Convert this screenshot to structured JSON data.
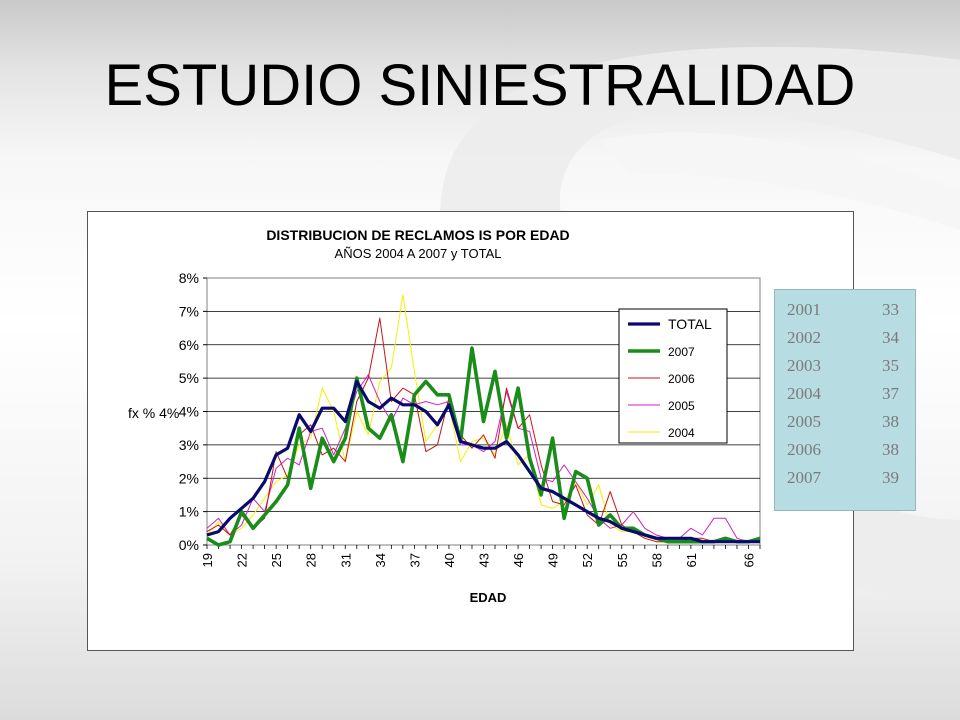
{
  "slide": {
    "title": "ESTUDIO SINIESTRALIDAD"
  },
  "colors": {
    "TOTAL": "#0a0a6e",
    "2007": "#1a8c1a",
    "2006": "#c81414",
    "2005": "#cc22cc",
    "2004": "#f2f200",
    "table_bg": "#b7dde3",
    "table_text": "#7a7a7a"
  },
  "chart_data": {
    "type": "line",
    "title": "DISTRIBUCION DE RECLAMOS IS POR EDAD",
    "subtitle": "AÑOS 2004 A 2007 y TOTAL",
    "xlabel": "EDAD",
    "ylabel": "fx % 4%",
    "x_ticks": [
      "19",
      "22",
      "25",
      "28",
      "31",
      "34",
      "37",
      "40",
      "43",
      "46",
      "49",
      "52",
      "55",
      "58",
      "61",
      "66"
    ],
    "y_ticks": [
      "0%",
      "1%",
      "2%",
      "3%",
      "4%",
      "5%",
      "6%",
      "7%",
      "8%"
    ],
    "ylim": [
      0,
      8
    ],
    "grid": true,
    "legend_position": "right",
    "x": [
      19,
      20,
      21,
      22,
      23,
      24,
      25,
      26,
      27,
      28,
      29,
      30,
      31,
      32,
      33,
      34,
      35,
      36,
      37,
      38,
      39,
      40,
      41,
      42,
      43,
      44,
      45,
      46,
      47,
      48,
      49,
      50,
      51,
      52,
      53,
      54,
      55,
      56,
      57,
      58,
      59,
      60,
      61,
      62,
      63,
      64,
      65,
      66,
      67
    ],
    "series": [
      {
        "name": "TOTAL",
        "values": [
          0.3,
          0.4,
          0.8,
          1.1,
          1.4,
          1.9,
          2.7,
          2.9,
          3.9,
          3.4,
          4.1,
          4.1,
          3.7,
          4.9,
          4.3,
          4.1,
          4.4,
          4.2,
          4.2,
          4.0,
          3.6,
          4.2,
          3.1,
          3.0,
          2.9,
          2.9,
          3.1,
          2.7,
          2.2,
          1.7,
          1.6,
          1.4,
          1.2,
          1.0,
          0.8,
          0.7,
          0.5,
          0.4,
          0.3,
          0.2,
          0.2,
          0.2,
          0.2,
          0.1,
          0.1,
          0.1,
          0.1,
          0.1,
          0.1
        ]
      },
      {
        "name": "2007",
        "values": [
          0.2,
          0.0,
          0.1,
          1.0,
          0.5,
          0.9,
          1.3,
          1.8,
          3.5,
          1.7,
          3.2,
          2.5,
          3.2,
          5.0,
          3.5,
          3.2,
          3.9,
          2.5,
          4.5,
          4.9,
          4.5,
          4.5,
          3.1,
          5.9,
          3.7,
          5.2,
          3.2,
          4.7,
          2.6,
          1.5,
          3.2,
          0.8,
          2.2,
          2.0,
          0.6,
          0.9,
          0.5,
          0.5,
          0.3,
          0.2,
          0.1,
          0.1,
          0.1,
          0.1,
          0.1,
          0.2,
          0.1,
          0.1,
          0.2
        ]
      },
      {
        "name": "2006",
        "values": [
          0.4,
          0.6,
          0.3,
          0.9,
          0.5,
          0.8,
          2.8,
          2.0,
          3.3,
          3.6,
          2.7,
          2.9,
          2.5,
          4.3,
          5.0,
          6.8,
          4.3,
          4.7,
          4.5,
          2.8,
          3.0,
          4.4,
          3.3,
          2.9,
          3.3,
          2.6,
          4.7,
          3.5,
          3.9,
          2.4,
          1.3,
          1.2,
          1.8,
          0.9,
          0.6,
          1.6,
          0.6,
          0.4,
          0.2,
          0.1,
          0.1,
          0.1,
          0.2,
          0.2,
          0.1,
          0.1,
          0.1,
          0.1,
          0.1
        ]
      },
      {
        "name": "2005",
        "values": [
          0.5,
          0.8,
          0.3,
          0.6,
          1.4,
          1.0,
          2.3,
          2.6,
          2.4,
          3.4,
          3.5,
          2.7,
          3.5,
          4.6,
          5.1,
          4.3,
          3.7,
          4.4,
          4.2,
          4.3,
          4.2,
          4.3,
          3.0,
          3.0,
          2.8,
          3.1,
          4.6,
          3.5,
          3.4,
          2.0,
          1.9,
          2.4,
          1.9,
          1.4,
          0.8,
          0.5,
          0.6,
          1.0,
          0.5,
          0.3,
          0.2,
          0.2,
          0.5,
          0.3,
          0.8,
          0.8,
          0.2,
          0.1,
          0.1
        ]
      },
      {
        "name": "2004",
        "values": [
          0.3,
          0.7,
          0.3,
          0.5,
          0.9,
          1.4,
          1.9,
          2.1,
          3.0,
          3.2,
          4.7,
          4.0,
          2.5,
          4.0,
          3.3,
          4.9,
          5.3,
          7.5,
          5.2,
          3.1,
          3.6,
          4.2,
          2.5,
          3.1,
          3.2,
          2.7,
          3.6,
          2.4,
          2.7,
          1.2,
          1.1,
          1.3,
          1.9,
          1.2,
          1.8,
          0.6,
          0.4,
          0.4,
          0.2,
          0.1,
          0.1,
          0.1,
          0.1,
          0.1,
          0.1,
          0.1,
          0.1,
          0.1,
          0.1
        ]
      }
    ]
  },
  "year_table": [
    {
      "year": "2001",
      "age": "33"
    },
    {
      "year": "2002",
      "age": "34"
    },
    {
      "year": "2003",
      "age": "35"
    },
    {
      "year": "2004",
      "age": "37"
    },
    {
      "year": "2005",
      "age": "38"
    },
    {
      "year": "2006",
      "age": "38"
    },
    {
      "year": "2007",
      "age": "39"
    }
  ]
}
